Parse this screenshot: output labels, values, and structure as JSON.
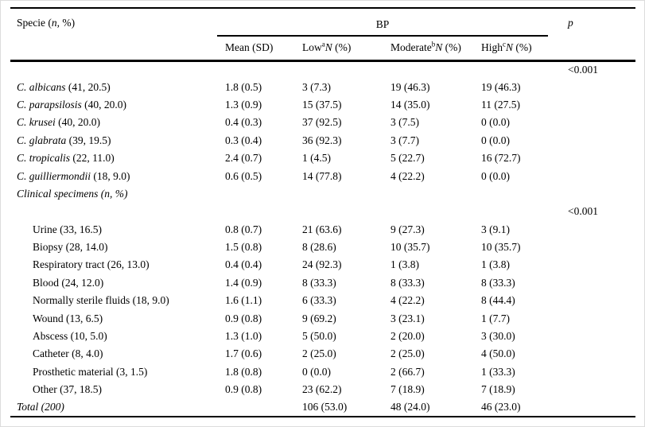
{
  "colors": {
    "text": "#000000",
    "rule": "#000000",
    "background": "#ffffff",
    "frame": "#dcdcdc"
  },
  "header": {
    "specie_prefix": "Specie (",
    "specie_n": "n",
    "specie_suffix": ", %)",
    "bp_group": "BP",
    "p": "p",
    "sub_mean": "Mean (SD)",
    "sub_low": {
      "label": "Low",
      "sup": "a",
      "n": "N",
      "tail": " (%)"
    },
    "sub_moderate": {
      "label": "Moderate",
      "sup": "b",
      "n": "N",
      "tail": " (%)"
    },
    "sub_high": {
      "label": "High",
      "sup": "c",
      "n": "N",
      "tail": " (%)"
    }
  },
  "rows": [
    {
      "type": "pvalue",
      "label": "",
      "mean": "",
      "low": "",
      "moderate": "",
      "high": "",
      "p": "<0.001"
    },
    {
      "type": "species",
      "name": "C. albicans",
      "detail": "(41, 20.5)",
      "mean": "1.8 (0.5)",
      "low": "3 (7.3)",
      "moderate": "19 (46.3)",
      "high": "19 (46.3)",
      "p": ""
    },
    {
      "type": "species",
      "name": "C. parapsilosis",
      "detail": "(40, 20.0)",
      "mean": "1.3 (0.9)",
      "low": "15 (37.5)",
      "moderate": "14 (35.0)",
      "high": "11 (27.5)",
      "p": ""
    },
    {
      "type": "species",
      "name": "C. krusei",
      "detail": "(40, 20.0)",
      "mean": "0.4 (0.3)",
      "low": "37 (92.5)",
      "moderate": "3 (7.5)",
      "high": "0 (0.0)",
      "p": ""
    },
    {
      "type": "species",
      "name": "C. glabrata",
      "detail": "(39, 19.5)",
      "mean": "0.3 (0.4)",
      "low": "36 (92.3)",
      "moderate": "3 (7.7)",
      "high": "0 (0.0)",
      "p": ""
    },
    {
      "type": "species",
      "name": "C. tropicalis",
      "detail": "(22, 11.0)",
      "mean": "2.4 (0.7)",
      "low": "1 (4.5)",
      "moderate": "5 (22.7)",
      "high": "16 (72.7)",
      "p": ""
    },
    {
      "type": "species",
      "name": "C. guilliermondii",
      "detail": "(18, 9.0)",
      "mean": "0.6 (0.5)",
      "low": "14 (77.8)",
      "moderate": "4 (22.2)",
      "high": "0 (0.0)",
      "p": ""
    },
    {
      "type": "section",
      "label": "Clinical specimens (n, %)",
      "mean": "",
      "low": "",
      "moderate": "",
      "high": "",
      "p": ""
    },
    {
      "type": "pvalue",
      "label": "",
      "mean": "",
      "low": "",
      "moderate": "",
      "high": "",
      "p": "<0.001"
    },
    {
      "type": "indent",
      "label": "Urine (33, 16.5)",
      "mean": "0.8 (0.7)",
      "low": "21 (63.6)",
      "moderate": "9 (27.3)",
      "high": "3 (9.1)",
      "p": ""
    },
    {
      "type": "indent",
      "label": "Biopsy (28, 14.0)",
      "mean": "1.5 (0.8)",
      "low": "8 (28.6)",
      "moderate": "10 (35.7)",
      "high": "10 (35.7)",
      "p": ""
    },
    {
      "type": "indent",
      "label": "Respiratory tract (26, 13.0)",
      "mean": "0.4 (0.4)",
      "low": "24 (92.3)",
      "moderate": "1 (3.8)",
      "high": "1 (3.8)",
      "p": ""
    },
    {
      "type": "indent",
      "label": "Blood (24, 12.0)",
      "mean": "1.4 (0.9)",
      "low": "8 (33.3)",
      "moderate": "8 (33.3)",
      "high": "8 (33.3)",
      "p": ""
    },
    {
      "type": "indent",
      "label": "Normally sterile fluids (18, 9.0)",
      "mean": "1.6 (1.1)",
      "low": "6 (33.3)",
      "moderate": "4 (22.2)",
      "high": "8 (44.4)",
      "p": ""
    },
    {
      "type": "indent",
      "label": "Wound (13, 6.5)",
      "mean": "0.9 (0.8)",
      "low": "9 (69.2)",
      "moderate": "3 (23.1)",
      "high": "1 (7.7)",
      "p": ""
    },
    {
      "type": "indent",
      "label": "Abscess (10, 5.0)",
      "mean": "1.3 (1.0)",
      "low": "5 (50.0)",
      "moderate": "2 (20.0)",
      "high": "3 (30.0)",
      "p": ""
    },
    {
      "type": "indent",
      "label": "Catheter (8, 4.0)",
      "mean": "1.7 (0.6)",
      "low": "2 (25.0)",
      "moderate": "2 (25.0)",
      "high": "4 (50.0)",
      "p": ""
    },
    {
      "type": "indent",
      "label": "Prosthetic material (3, 1.5)",
      "mean": "1.8 (0.8)",
      "low": "0 (0.0)",
      "moderate": "2 (66.7)",
      "high": "1 (33.3)",
      "p": ""
    },
    {
      "type": "indent",
      "label": "Other (37, 18.5)",
      "mean": "0.9 (0.8)",
      "low": "23 (62.2)",
      "moderate": "7 (18.9)",
      "high": "7 (18.9)",
      "p": ""
    },
    {
      "type": "total",
      "label": "Total (200)",
      "mean": "",
      "low": "106 (53.0)",
      "moderate": "48 (24.0)",
      "high": "46 (23.0)",
      "p": ""
    }
  ]
}
